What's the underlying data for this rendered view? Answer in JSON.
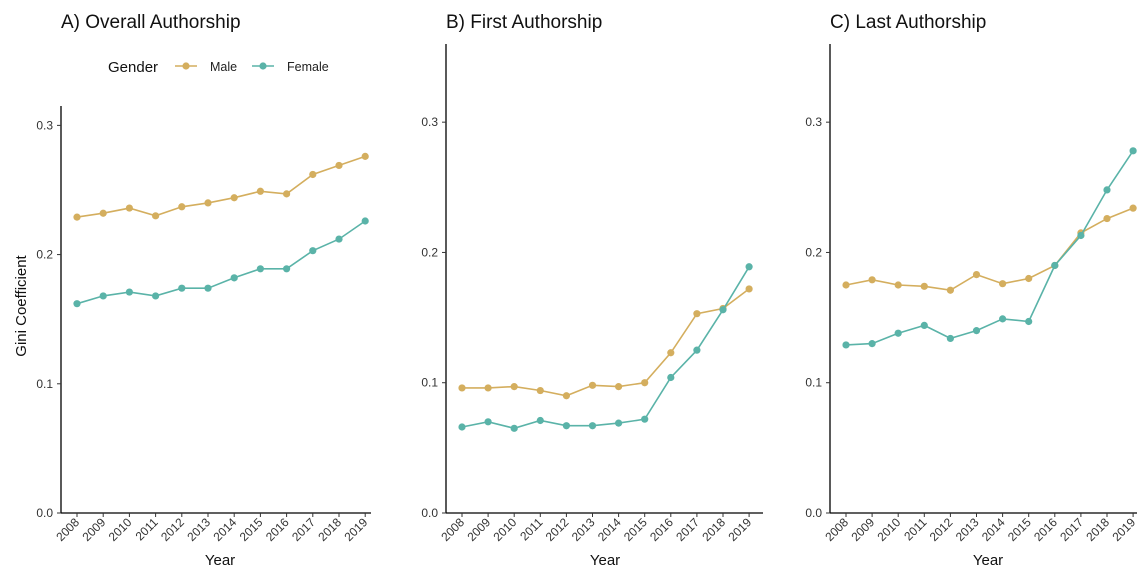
{
  "chart_data": [
    {
      "type": "line",
      "title": "A) Overall Authorship",
      "xlabel": "Year",
      "ylabel": "Gini Coefficient",
      "ylim": [
        0,
        0.315
      ],
      "yticks": [
        0.0,
        0.1,
        0.2,
        0.3
      ],
      "ytick_labels": [
        "0.0",
        "0.1",
        "0.2",
        "0.3"
      ],
      "x": [
        "2008",
        "2009",
        "2010",
        "2011",
        "2012",
        "2013",
        "2014",
        "2015",
        "2016",
        "2017",
        "2018",
        "2019"
      ],
      "series": [
        {
          "name": "Male",
          "color": "#D4AE5E",
          "values": [
            0.229,
            0.232,
            0.236,
            0.23,
            0.237,
            0.24,
            0.244,
            0.249,
            0.247,
            0.262,
            0.269,
            0.276
          ]
        },
        {
          "name": "Female",
          "color": "#5AB3A8",
          "values": [
            0.162,
            0.168,
            0.171,
            0.168,
            0.174,
            0.174,
            0.182,
            0.189,
            0.189,
            0.203,
            0.212,
            0.226
          ]
        }
      ],
      "legend": {
        "title": "Gender",
        "position": "top"
      },
      "grid": false
    },
    {
      "type": "line",
      "title": "B) First Authorship",
      "xlabel": "Year",
      "ylabel": "",
      "ylim": [
        0,
        0.36
      ],
      "yticks": [
        0.0,
        0.1,
        0.2,
        0.3
      ],
      "ytick_labels": [
        "0.0",
        "0.1",
        "0.2",
        "0.3"
      ],
      "x": [
        "2008",
        "2009",
        "2010",
        "2011",
        "2012",
        "2013",
        "2014",
        "2015",
        "2016",
        "2017",
        "2018",
        "2019"
      ],
      "series": [
        {
          "name": "Male",
          "color": "#D4AE5E",
          "values": [
            0.096,
            0.096,
            0.097,
            0.094,
            0.09,
            0.098,
            0.097,
            0.1,
            0.123,
            0.153,
            0.157,
            0.172
          ]
        },
        {
          "name": "Female",
          "color": "#5AB3A8",
          "values": [
            0.066,
            0.07,
            0.065,
            0.071,
            0.067,
            0.067,
            0.069,
            0.072,
            0.104,
            0.125,
            0.156,
            0.189
          ]
        }
      ],
      "grid": false
    },
    {
      "type": "line",
      "title": "C) Last Authorship",
      "xlabel": "Year",
      "ylabel": "",
      "ylim": [
        0,
        0.36
      ],
      "yticks": [
        0.0,
        0.1,
        0.2,
        0.3
      ],
      "ytick_labels": [
        "0.0",
        "0.1",
        "0.2",
        "0.3"
      ],
      "x": [
        "2008",
        "2009",
        "2010",
        "2011",
        "2012",
        "2013",
        "2014",
        "2015",
        "2016",
        "2017",
        "2018",
        "2019"
      ],
      "series": [
        {
          "name": "Male",
          "color": "#D4AE5E",
          "values": [
            0.175,
            0.179,
            0.175,
            0.174,
            0.171,
            0.183,
            0.176,
            0.18,
            0.19,
            0.215,
            0.226,
            0.234
          ]
        },
        {
          "name": "Female",
          "color": "#5AB3A8",
          "values": [
            0.129,
            0.13,
            0.138,
            0.144,
            0.134,
            0.14,
            0.149,
            0.147,
            0.19,
            0.213,
            0.248,
            0.278
          ]
        }
      ],
      "grid": false
    }
  ]
}
